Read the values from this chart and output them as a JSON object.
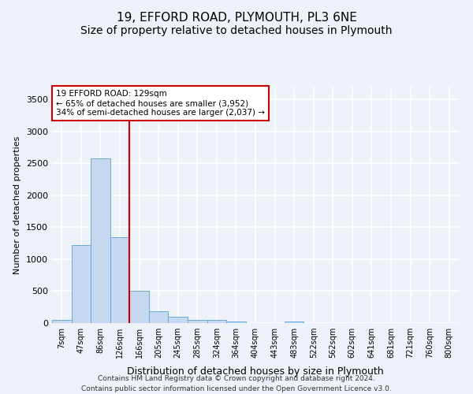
{
  "title": "19, EFFORD ROAD, PLYMOUTH, PL3 6NE",
  "subtitle": "Size of property relative to detached houses in Plymouth",
  "xlabel": "Distribution of detached houses by size in Plymouth",
  "ylabel": "Number of detached properties",
  "bar_labels": [
    "7sqm",
    "47sqm",
    "86sqm",
    "126sqm",
    "166sqm",
    "205sqm",
    "245sqm",
    "285sqm",
    "324sqm",
    "364sqm",
    "404sqm",
    "443sqm",
    "483sqm",
    "522sqm",
    "562sqm",
    "602sqm",
    "641sqm",
    "681sqm",
    "721sqm",
    "760sqm",
    "800sqm"
  ],
  "bar_values": [
    50,
    1220,
    2580,
    1340,
    500,
    185,
    100,
    50,
    45,
    30,
    0,
    0,
    30,
    0,
    0,
    0,
    0,
    0,
    0,
    0,
    0
  ],
  "bar_color": "#c5d8f0",
  "bar_edge_color": "#6aaad4",
  "red_line_index": 3,
  "red_line_color": "#cc0000",
  "annotation_label": "19 EFFORD ROAD: 129sqm",
  "annotation_line1": "← 65% of detached houses are smaller (3,952)",
  "annotation_line2": "34% of semi-detached houses are larger (2,037) →",
  "annotation_box_color": "#ffffff",
  "annotation_box_edge": "#cc0000",
  "ylim": [
    0,
    3700
  ],
  "yticks": [
    0,
    500,
    1000,
    1500,
    2000,
    2500,
    3000,
    3500
  ],
  "footer1": "Contains HM Land Registry data © Crown copyright and database right 2024.",
  "footer2": "Contains public sector information licensed under the Open Government Licence v3.0.",
  "bg_color": "#edf2f9",
  "grid_color": "#ffffff",
  "title_fontsize": 11,
  "subtitle_fontsize": 10,
  "footer_fontsize": 6.5
}
